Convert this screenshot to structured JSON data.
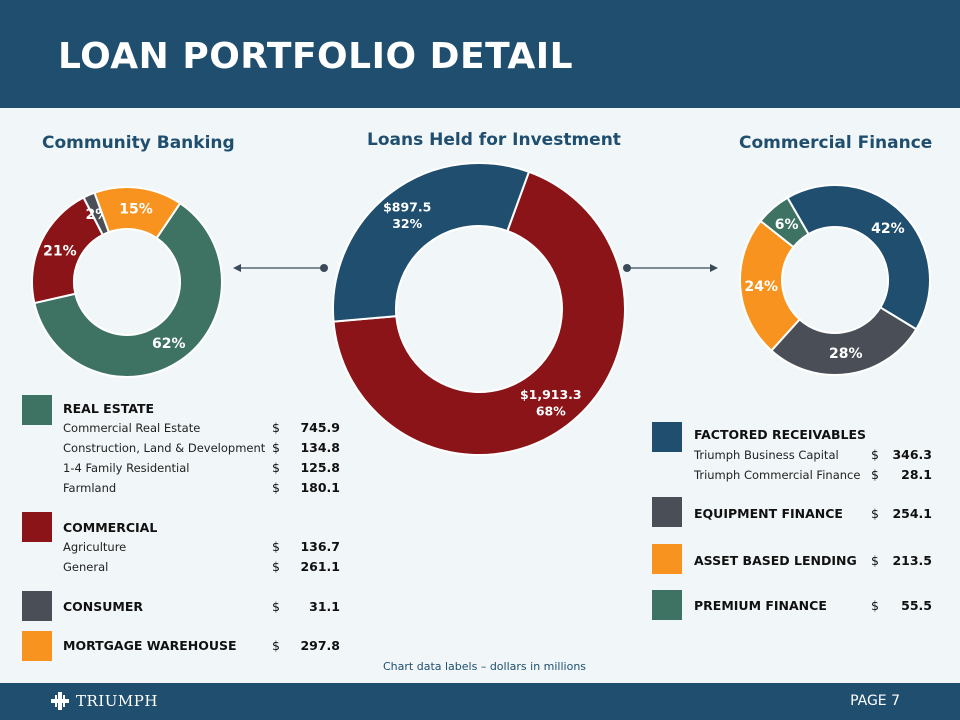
{
  "title": "LOAN PORTFOLIO DETAIL",
  "page_label": "PAGE 7",
  "logo_text": "TRIUMPH",
  "note": "Chart data labels – dollars in millions",
  "colors": {
    "header": "#1f4e6e",
    "real_estate": "#3e7262",
    "commercial": "#8b1418",
    "consumer": "#4a4f57",
    "mortgage_warehouse": "#f7931e",
    "factored": "#1f4e6e",
    "equipment": "#4a4f57",
    "abl": "#f7931e",
    "premium": "#3e7262"
  },
  "chart_data": [
    {
      "type": "pie",
      "title": "Community Banking",
      "slices": [
        {
          "label": "Real Estate",
          "value": 62,
          "display": "62%",
          "color": "#3e7262"
        },
        {
          "label": "Commercial",
          "value": 21,
          "display": "21%",
          "color": "#8b1418"
        },
        {
          "label": "Consumer",
          "value": 2,
          "display": "2%",
          "color": "#4a4f57"
        },
        {
          "label": "Mortgage Warehouse",
          "value": 15,
          "display": "15%",
          "color": "#f7931e"
        }
      ]
    },
    {
      "type": "pie",
      "title": "Loans Held for Investment",
      "slices": [
        {
          "label": "Community Banking",
          "value": 1913.3,
          "display": "$1,913.3",
          "display2": "68%",
          "color": "#8b1418"
        },
        {
          "label": "Commercial Finance",
          "value": 897.5,
          "display": "$897.5",
          "display2": "32%",
          "color": "#1f4e6e"
        }
      ]
    },
    {
      "type": "pie",
      "title": "Commercial Finance",
      "slices": [
        {
          "label": "Factored Receivables",
          "value": 42,
          "display": "42%",
          "color": "#1f4e6e"
        },
        {
          "label": "Equipment Finance",
          "value": 28,
          "display": "28%",
          "color": "#4a4f57"
        },
        {
          "label": "Asset Based Lending",
          "value": 24,
          "display": "24%",
          "color": "#f7931e"
        },
        {
          "label": "Premium Finance",
          "value": 6,
          "display": "6%",
          "color": "#3e7262"
        }
      ]
    }
  ],
  "legend_left": {
    "real_estate": {
      "label": "REAL ESTATE",
      "items": [
        {
          "label": "Commercial Real Estate",
          "dollar": "$",
          "value": "745.9"
        },
        {
          "label": "Construction, Land & Development",
          "dollar": "$",
          "value": "134.8"
        },
        {
          "label": "1-4 Family Residential",
          "dollar": "$",
          "value": "125.8"
        },
        {
          "label": "Farmland",
          "dollar": "$",
          "value": "180.1"
        }
      ]
    },
    "commercial": {
      "label": "COMMERCIAL",
      "items": [
        {
          "label": "Agriculture",
          "dollar": "$",
          "value": "136.7"
        },
        {
          "label": "General",
          "dollar": "$",
          "value": "261.1"
        }
      ]
    },
    "consumer": {
      "label": "CONSUMER",
      "dollar": "$",
      "value": "31.1"
    },
    "mortgage_warehouse": {
      "label": "MORTGAGE WAREHOUSE",
      "dollar": "$",
      "value": "297.8"
    }
  },
  "legend_right": {
    "factored": {
      "label": "FACTORED RECEIVABLES",
      "items": [
        {
          "label": "Triumph Business Capital",
          "dollar": "$",
          "value": "346.3"
        },
        {
          "label": "Triumph Commercial Finance",
          "dollar": "$",
          "value": "28.1"
        }
      ]
    },
    "equipment": {
      "label": "EQUIPMENT FINANCE",
      "dollar": "$",
      "value": "254.1"
    },
    "abl": {
      "label": "ASSET BASED LENDING",
      "dollar": "$",
      "value": "213.5"
    },
    "premium": {
      "label": "PREMIUM FINANCE",
      "dollar": "$",
      "value": "55.5"
    }
  }
}
